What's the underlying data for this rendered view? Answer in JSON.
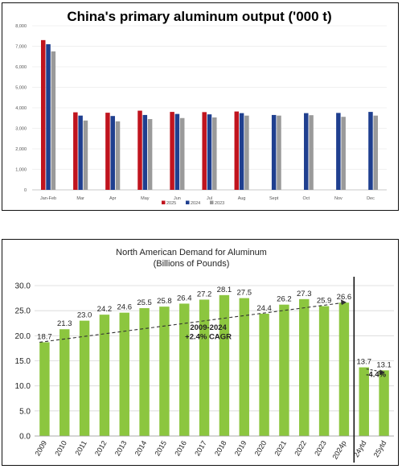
{
  "chart_data": [
    {
      "type": "bar",
      "title": "China's primary aluminum output ('000 t)",
      "categories": [
        "Jan-Feb",
        "Mar",
        "Apr",
        "May",
        "Jun",
        "Jul",
        "Aug",
        "Sept",
        "Oct",
        "Nov",
        "Dec"
      ],
      "series": [
        {
          "name": "2025",
          "color": "#c0141e",
          "values": [
            7300,
            3780,
            3760,
            3860,
            3800,
            3790,
            3820,
            null,
            null,
            null,
            null
          ]
        },
        {
          "name": "2024",
          "color": "#1f3f8f",
          "values": [
            7100,
            3620,
            3600,
            3650,
            3700,
            3680,
            3740,
            3650,
            3740,
            3750,
            3800
          ]
        },
        {
          "name": "2023",
          "color": "#9a9a9a",
          "values": [
            6750,
            3380,
            3340,
            3450,
            3500,
            3530,
            3620,
            3620,
            3640,
            3560,
            3620
          ]
        }
      ],
      "ylim": [
        0,
        8000
      ],
      "yticks": [
        "0",
        "1,000",
        "2,000",
        "3,000",
        "4,000",
        "5,000",
        "6,000",
        "7,000",
        "8,000"
      ],
      "legend_position": "bottom",
      "grid": true
    },
    {
      "type": "bar",
      "title": "North American Demand for Aluminum",
      "subtitle": "(Billions of Pounds)",
      "categories": [
        "2009",
        "2010",
        "2011",
        "2012",
        "2013",
        "2014",
        "2015",
        "2016",
        "2017",
        "2018",
        "2019",
        "2020",
        "2021",
        "2022",
        "2023",
        "2024p",
        "24ytd",
        "25ytd"
      ],
      "values": [
        18.7,
        21.3,
        23.0,
        24.2,
        24.6,
        25.5,
        25.8,
        26.4,
        27.2,
        28.1,
        27.5,
        24.4,
        26.2,
        27.3,
        25.9,
        26.6,
        13.7,
        13.1
      ],
      "data_labels": [
        "18.7",
        "21.3",
        "23.0",
        "24.2",
        "24.6",
        "25.5",
        "25.8",
        "26.4",
        "27.2",
        "28.1",
        "27.5",
        "24.4",
        "26.2",
        "27.3",
        "25.9",
        "26.6",
        "13.7",
        "13.1"
      ],
      "bar_color": "#8cc63f",
      "ylim": [
        0,
        30
      ],
      "yticks": [
        "0.0",
        "5.0",
        "10.0",
        "15.0",
        "20.0",
        "25.0",
        "30.0"
      ],
      "grid": true,
      "annotations": [
        {
          "text_lines": [
            "2009-2024",
            "+2.4% CAGR"
          ],
          "trend": {
            "x_from": "2009",
            "y_from": 18.7,
            "x_to": "2024p",
            "y_to": 26.6
          }
        },
        {
          "text": "-4.4%",
          "trend": {
            "x_from": "24ytd",
            "y_from": 13.7,
            "x_to": "25ytd",
            "y_to": 13.1
          }
        }
      ]
    }
  ]
}
